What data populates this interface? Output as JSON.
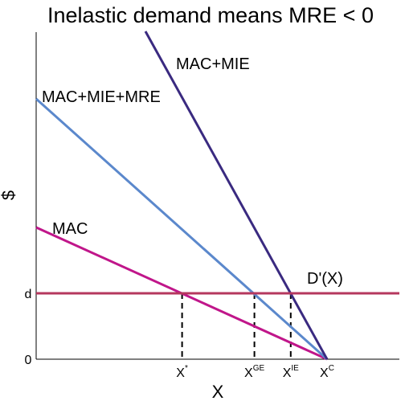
{
  "chart_data": {
    "type": "line",
    "title": "Inelastic demand means MRE < 0",
    "xlabel": "X",
    "ylabel": "$",
    "xlim": [
      0,
      10
    ],
    "ylim": [
      0,
      10
    ],
    "grid": false,
    "series": [
      {
        "name": "MAC",
        "color": "#c0168a",
        "points": [
          [
            0,
            4.1
          ],
          [
            9.05,
            0
          ]
        ]
      },
      {
        "name": "MAC+MIE+MRE",
        "color": "#5b88cc",
        "points": [
          [
            0,
            8.1
          ],
          [
            9.05,
            0
          ]
        ]
      },
      {
        "name": "MAC+MIE",
        "color": "#3a2a80",
        "points": [
          [
            3.4,
            10.2
          ],
          [
            9.05,
            0
          ]
        ]
      },
      {
        "name": "D'(X)",
        "color": "#b5375e",
        "points": [
          [
            0,
            2.05
          ],
          [
            11.3,
            2.05
          ]
        ]
      }
    ],
    "y_ticks": [
      {
        "label": "0",
        "value": 0
      },
      {
        "label": "d",
        "value": 2.05
      }
    ],
    "x_ticks": [
      {
        "base": "X",
        "sup": "*",
        "value": 4.54
      },
      {
        "base": "X",
        "sup": "GE",
        "value": 6.79
      },
      {
        "base": "X",
        "sup": "IE",
        "value": 7.92
      },
      {
        "base": "X",
        "sup": "C",
        "value": 9.05
      }
    ],
    "dashed_drops": [
      4.54,
      6.79,
      7.92
    ]
  }
}
